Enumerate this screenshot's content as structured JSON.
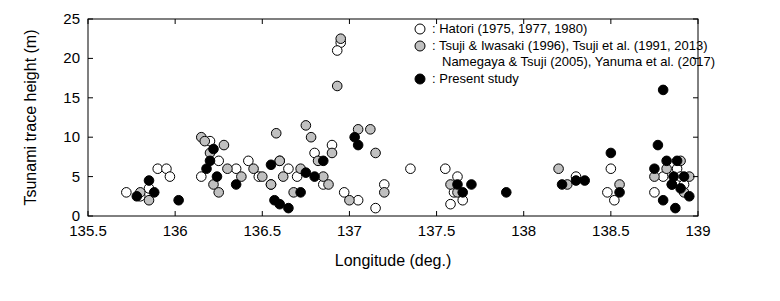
{
  "chart_data": {
    "type": "scatter",
    "x_label": "Longitude (deg.)",
    "y_label": "Tsunami trace height (m)",
    "xlim": [
      135.5,
      139
    ],
    "ylim": [
      0,
      25
    ],
    "xticks": [
      135.5,
      136,
      136.5,
      137,
      137.5,
      138,
      138.5,
      139
    ],
    "yticks": [
      0,
      5,
      10,
      15,
      20,
      25
    ],
    "grid": false,
    "legend": "upper-right",
    "series": [
      {
        "name": ": Hatori (1975, 1977, 1980)",
        "color": "#ffffff",
        "marker": "circle",
        "x": [
          135.72,
          135.8,
          135.85,
          135.9,
          135.95,
          135.97,
          136.15,
          136.2,
          136.25,
          136.35,
          136.42,
          136.48,
          136.55,
          136.6,
          136.65,
          136.7,
          136.8,
          136.85,
          136.9,
          136.95,
          136.93,
          136.97,
          137.05,
          137.15,
          137.2,
          137.35,
          137.55,
          137.58,
          137.6,
          137.62,
          137.65,
          138.3,
          138.48,
          138.5,
          138.52,
          138.75,
          138.8,
          138.88,
          138.9,
          138.92
        ],
        "values": [
          3,
          2.5,
          3.5,
          6,
          6,
          5,
          5,
          9.5,
          7,
          6,
          7,
          5,
          4,
          7,
          6,
          5,
          8,
          4,
          9,
          22,
          21,
          3,
          2,
          1,
          4,
          6,
          6,
          1.5,
          3,
          5,
          2,
          5,
          3,
          6,
          2,
          3,
          5,
          6,
          5,
          4
        ]
      },
      {
        "name": ": Tsuji & Iwasaki (1996), Tsuji et al. (1991, 2013)\nNamegaya & Tsuji (2005), Yanuma et al. (2017)",
        "color": "#c0c0c0",
        "marker": "circle",
        "x": [
          135.8,
          135.85,
          136.15,
          136.17,
          136.2,
          136.22,
          136.25,
          136.28,
          136.3,
          136.38,
          136.45,
          136.5,
          136.55,
          136.58,
          136.6,
          136.62,
          136.68,
          136.72,
          136.75,
          136.78,
          136.82,
          136.85,
          136.88,
          136.9,
          136.93,
          136.95,
          137.0,
          137.05,
          137.12,
          137.15,
          137.2,
          137.58,
          137.62,
          138.2,
          138.25,
          138.55,
          138.75,
          138.82,
          138.85,
          138.9,
          138.92,
          138.95
        ],
        "values": [
          3,
          2,
          10,
          9.5,
          8,
          4,
          3,
          9,
          6,
          5,
          6,
          5,
          4,
          10.5,
          7,
          5,
          3,
          6,
          11.5,
          10,
          7,
          5,
          4,
          8,
          16.5,
          22.5,
          2,
          11,
          11,
          8,
          3,
          4,
          3,
          6,
          4,
          4,
          5,
          6,
          4,
          7,
          3,
          5
        ]
      },
      {
        "name": ": Present study",
        "color": "#000000",
        "marker": "circle",
        "x": [
          135.78,
          135.85,
          135.88,
          136.02,
          136.18,
          136.2,
          136.22,
          136.24,
          136.35,
          136.55,
          136.57,
          136.6,
          136.65,
          136.72,
          136.75,
          136.8,
          136.85,
          137.03,
          137.05,
          137.62,
          137.65,
          137.7,
          137.9,
          138.22,
          138.3,
          138.35,
          138.5,
          138.55,
          138.75,
          138.77,
          138.8,
          138.8,
          138.82,
          138.85,
          138.86,
          138.87,
          138.88,
          138.9,
          138.92,
          138.95
        ],
        "values": [
          2.5,
          4.5,
          3,
          2,
          6,
          7,
          8.5,
          5,
          4,
          6.5,
          2,
          1.5,
          1,
          3,
          5.5,
          5,
          7,
          10,
          9,
          4,
          3,
          4,
          3,
          4,
          4.5,
          4.5,
          8,
          3,
          6,
          9,
          16,
          2,
          7,
          4,
          5,
          1,
          7,
          3.5,
          5,
          2.5
        ]
      }
    ]
  }
}
